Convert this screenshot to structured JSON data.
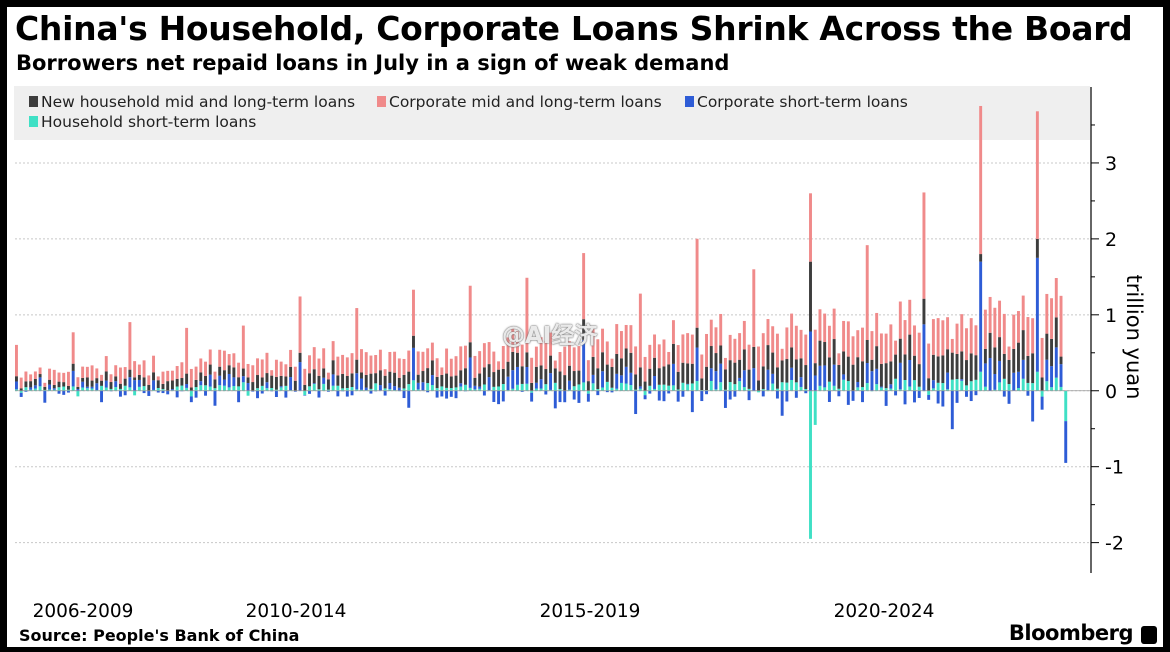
{
  "header": {
    "title": "China's Household, Corporate Loans Shrink Across the Board",
    "subtitle": "Borrowers net repaid loans in July in a sign of weak demand"
  },
  "footer": {
    "source": "Source: People's Bank of China",
    "brand": "Bloomberg"
  },
  "watermark": "@AI经济",
  "colors": {
    "household_mlt": "#3d3d3d",
    "corporate_mlt": "#f08a8a",
    "corporate_st": "#2e5cd6",
    "household_st": "#3fe0c5",
    "grid": "#c8c8c8",
    "legend_bg": "#efefef"
  },
  "chart_data": {
    "type": "bar",
    "stacked": true,
    "ylabel": "trillion yuan",
    "ylim": [
      -2.4,
      4.0
    ],
    "yticks": [
      -2,
      -1,
      0,
      1,
      2,
      3
    ],
    "ytick_labels": [
      "-2",
      "-1",
      "0",
      "1",
      "2",
      "3"
    ],
    "xaxis_groups": [
      "2006-2009",
      "2010-2014",
      "2015-2019",
      "2020-2024"
    ],
    "legend_position": "top-left",
    "series": [
      {
        "name": "New household mid and long-term loans",
        "color_key": "household_mlt"
      },
      {
        "name": "Corporate mid and long-term loans",
        "color_key": "corporate_mlt"
      },
      {
        "name": "Corporate short-term loans",
        "color_key": "corporate_st"
      },
      {
        "name": "Household short-term loans",
        "color_key": "household_st"
      }
    ],
    "period_start": "2006-01",
    "period_end": "2024-07",
    "notable_points": [
      {
        "period": "2020-01",
        "household_st": -1.95,
        "total_positive_top": 2.6
      },
      {
        "period": "2023-01",
        "corporate_mlt_top": 3.5
      },
      {
        "period": "2024-01",
        "corporate_mlt_top": 3.4
      },
      {
        "period": "2024-07",
        "corporate_st": -0.55,
        "household_st": -0.4
      }
    ]
  }
}
